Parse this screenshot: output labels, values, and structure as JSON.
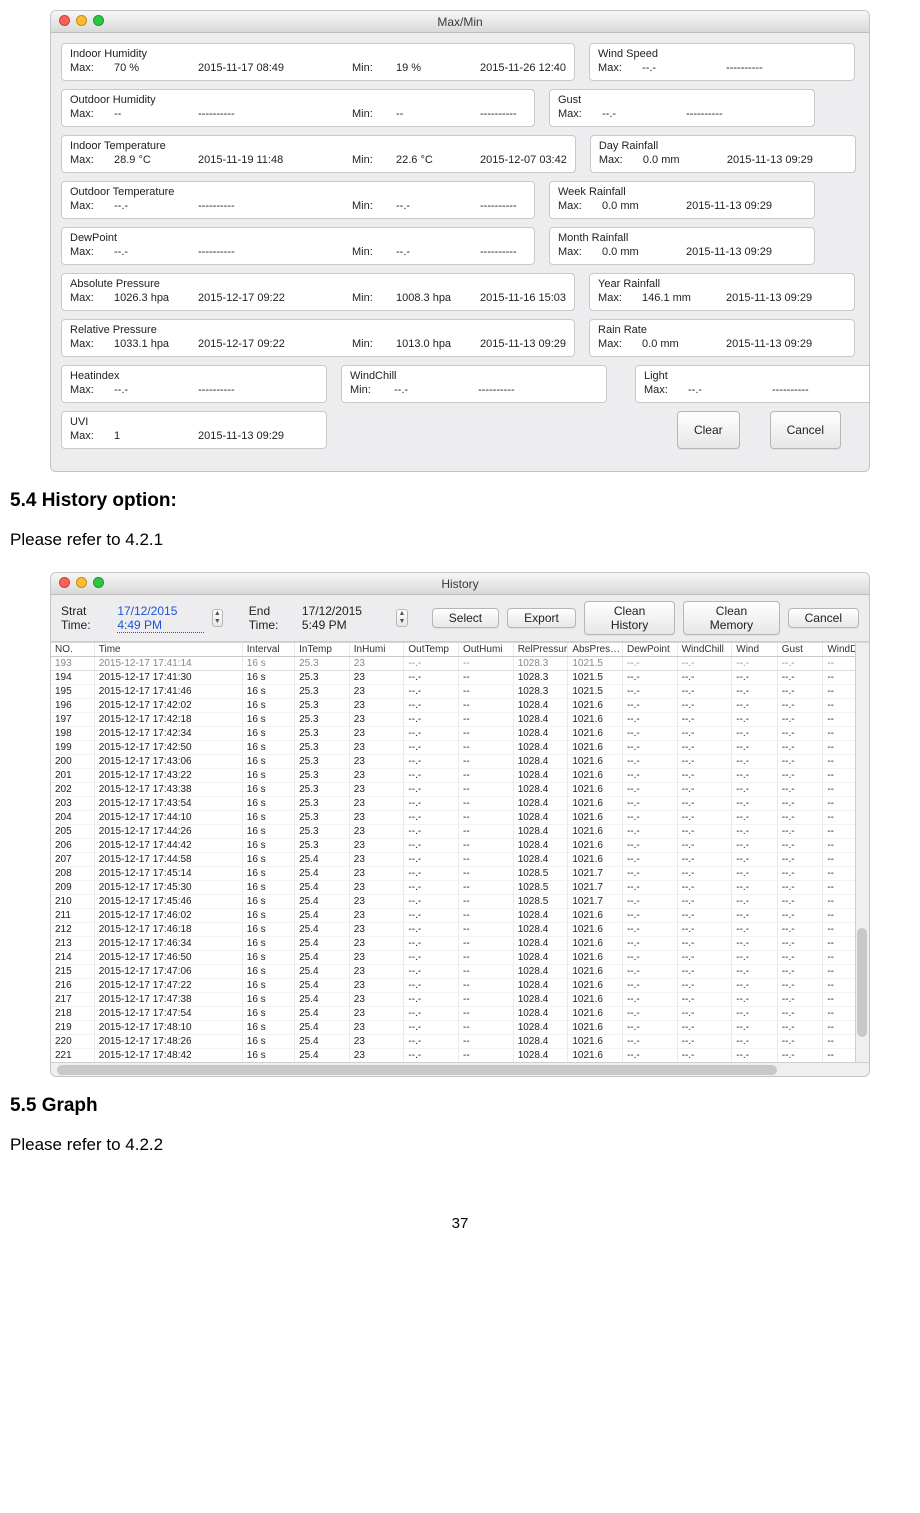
{
  "doc": {
    "h54": "5.4 History option:",
    "p54": "Please refer to 4.2.1",
    "h55": "5.5 Graph",
    "p55": "Please refer to 4.2.2",
    "page_number": "37"
  },
  "maxmin": {
    "title": "Max/Min",
    "clear_btn": "Clear",
    "cancel_btn": "Cancel",
    "rows": [
      {
        "left": {
          "title": "Indoor Humidity",
          "max_lab": "Max:",
          "max_val": "70 %",
          "max_ts": "2015-11-17 08:49",
          "min_lab": "Min:",
          "min_val": "19 %",
          "min_ts": "2015-11-26 12:40",
          "wide": true
        },
        "right": {
          "title": "Wind Speed",
          "max_lab": "Max:",
          "max_val": "--.-",
          "max_ts": "----------"
        }
      },
      {
        "left": {
          "title": "Outdoor Humidity",
          "max_lab": "Max:",
          "max_val": "--",
          "max_ts": "----------",
          "min_lab": "Min:",
          "min_val": "--",
          "min_ts": "----------",
          "wide": true
        },
        "right": {
          "title": "Gust",
          "max_lab": "Max:",
          "max_val": "--.-",
          "max_ts": "----------"
        }
      },
      {
        "left": {
          "title": "Indoor Temperature",
          "max_lab": "Max:",
          "max_val": "28.9 °C",
          "max_ts": "2015-11-19 11:48",
          "min_lab": "Min:",
          "min_val": "22.6 °C",
          "min_ts": "2015-12-07 03:42",
          "wide": true
        },
        "right": {
          "title": "Day Rainfall",
          "max_lab": "Max:",
          "max_val": "0.0 mm",
          "max_ts": "2015-11-13 09:29"
        }
      },
      {
        "left": {
          "title": "Outdoor Temperature",
          "max_lab": "Max:",
          "max_val": "--.-",
          "max_ts": "----------",
          "min_lab": "Min:",
          "min_val": "--.-",
          "min_ts": "----------",
          "wide": true
        },
        "right": {
          "title": "Week Rainfall",
          "max_lab": "Max:",
          "max_val": "0.0 mm",
          "max_ts": "2015-11-13 09:29"
        }
      },
      {
        "left": {
          "title": "DewPoint",
          "max_lab": "Max:",
          "max_val": "--.-",
          "max_ts": "----------",
          "min_lab": "Min:",
          "min_val": "--.-",
          "min_ts": "----------",
          "wide": true
        },
        "right": {
          "title": "Month Rainfall",
          "max_lab": "Max:",
          "max_val": "0.0 mm",
          "max_ts": "2015-11-13 09:29"
        }
      },
      {
        "left": {
          "title": "Absolute Pressure",
          "max_lab": "Max:",
          "max_val": "1026.3 hpa",
          "max_ts": "2015-12-17 09:22",
          "min_lab": "Min:",
          "min_val": "1008.3 hpa",
          "min_ts": "2015-11-16 15:03",
          "wide": true
        },
        "right": {
          "title": "Year Rainfall",
          "max_lab": "Max:",
          "max_val": "146.1 mm",
          "max_ts": "2015-11-13 09:29"
        }
      },
      {
        "left": {
          "title": "Relative Pressure",
          "max_lab": "Max:",
          "max_val": "1033.1 hpa",
          "max_ts": "2015-12-17 09:22",
          "min_lab": "Min:",
          "min_val": "1013.0 hpa",
          "min_ts": "2015-11-13 09:29",
          "wide": true
        },
        "right": {
          "title": "Rain Rate",
          "max_lab": "Max:",
          "max_val": "0.0 mm",
          "max_ts": "2015-11-13 09:29"
        }
      },
      {
        "left": {
          "title": "Heatindex",
          "max_lab": "Max:",
          "max_val": "--.-",
          "max_ts": "----------",
          "split": true,
          "mid": {
            "title": "WindChill",
            "lab": "Min:",
            "val": "--.-",
            "ts": "----------"
          }
        },
        "right": {
          "title": "Light",
          "max_lab": "Max:",
          "max_val": "--.-",
          "max_ts": "----------"
        }
      },
      {
        "left": {
          "title": "UVI",
          "max_lab": "Max:",
          "max_val": "1",
          "max_ts": "2015-11-13 09:29",
          "uvi": true
        },
        "right": null
      }
    ]
  },
  "history": {
    "title": "History",
    "start_lab": "Strat Time:",
    "start_val": "17/12/2015   4:49 PM",
    "end_lab": "End Time:",
    "end_val": "17/12/2015   5:49 PM",
    "btn_select": "Select",
    "btn_export": "Export",
    "btn_clean_history": "Clean History",
    "btn_clean_memory": "Clean Memory",
    "btn_cancel": "Cancel",
    "columns": [
      "NO.",
      "Time",
      "Interval",
      "InTemp",
      "InHumi",
      "OutTemp",
      "OutHumi",
      "RelPressure",
      "AbsPres…",
      "DewPoint",
      "WindChill",
      "Wind",
      "Gust",
      "WindD"
    ],
    "col_classes": [
      "col-no",
      "col-time",
      "col-int",
      "col-v",
      "col-v",
      "col-v",
      "col-v",
      "col-v",
      "col-v",
      "col-v",
      "col-v",
      "col-vxs",
      "col-vxs",
      "col-vxs"
    ],
    "cut_row": [
      "193",
      "2015-12-17 17:41:14",
      "16 s",
      "25.3",
      "23",
      "--.-",
      "--",
      "1028.3",
      "1021.5",
      "--.-",
      "--.-",
      "--.-",
      "--.-",
      "--"
    ],
    "rows": [
      [
        "194",
        "2015-12-17 17:41:30",
        "16 s",
        "25.3",
        "23",
        "--.-",
        "--",
        "1028.3",
        "1021.5",
        "--.-",
        "--.-",
        "--.-",
        "--.-",
        "--"
      ],
      [
        "195",
        "2015-12-17 17:41:46",
        "16 s",
        "25.3",
        "23",
        "--.-",
        "--",
        "1028.3",
        "1021.5",
        "--.-",
        "--.-",
        "--.-",
        "--.-",
        "--"
      ],
      [
        "196",
        "2015-12-17 17:42:02",
        "16 s",
        "25.3",
        "23",
        "--.-",
        "--",
        "1028.4",
        "1021.6",
        "--.-",
        "--.-",
        "--.-",
        "--.-",
        "--"
      ],
      [
        "197",
        "2015-12-17 17:42:18",
        "16 s",
        "25.3",
        "23",
        "--.-",
        "--",
        "1028.4",
        "1021.6",
        "--.-",
        "--.-",
        "--.-",
        "--.-",
        "--"
      ],
      [
        "198",
        "2015-12-17 17:42:34",
        "16 s",
        "25.3",
        "23",
        "--.-",
        "--",
        "1028.4",
        "1021.6",
        "--.-",
        "--.-",
        "--.-",
        "--.-",
        "--"
      ],
      [
        "199",
        "2015-12-17 17:42:50",
        "16 s",
        "25.3",
        "23",
        "--.-",
        "--",
        "1028.4",
        "1021.6",
        "--.-",
        "--.-",
        "--.-",
        "--.-",
        "--"
      ],
      [
        "200",
        "2015-12-17 17:43:06",
        "16 s",
        "25.3",
        "23",
        "--.-",
        "--",
        "1028.4",
        "1021.6",
        "--.-",
        "--.-",
        "--.-",
        "--.-",
        "--"
      ],
      [
        "201",
        "2015-12-17 17:43:22",
        "16 s",
        "25.3",
        "23",
        "--.-",
        "--",
        "1028.4",
        "1021.6",
        "--.-",
        "--.-",
        "--.-",
        "--.-",
        "--"
      ],
      [
        "202",
        "2015-12-17 17:43:38",
        "16 s",
        "25.3",
        "23",
        "--.-",
        "--",
        "1028.4",
        "1021.6",
        "--.-",
        "--.-",
        "--.-",
        "--.-",
        "--"
      ],
      [
        "203",
        "2015-12-17 17:43:54",
        "16 s",
        "25.3",
        "23",
        "--.-",
        "--",
        "1028.4",
        "1021.6",
        "--.-",
        "--.-",
        "--.-",
        "--.-",
        "--"
      ],
      [
        "204",
        "2015-12-17 17:44:10",
        "16 s",
        "25.3",
        "23",
        "--.-",
        "--",
        "1028.4",
        "1021.6",
        "--.-",
        "--.-",
        "--.-",
        "--.-",
        "--"
      ],
      [
        "205",
        "2015-12-17 17:44:26",
        "16 s",
        "25.3",
        "23",
        "--.-",
        "--",
        "1028.4",
        "1021.6",
        "--.-",
        "--.-",
        "--.-",
        "--.-",
        "--"
      ],
      [
        "206",
        "2015-12-17 17:44:42",
        "16 s",
        "25.3",
        "23",
        "--.-",
        "--",
        "1028.4",
        "1021.6",
        "--.-",
        "--.-",
        "--.-",
        "--.-",
        "--"
      ],
      [
        "207",
        "2015-12-17 17:44:58",
        "16 s",
        "25.4",
        "23",
        "--.-",
        "--",
        "1028.4",
        "1021.6",
        "--.-",
        "--.-",
        "--.-",
        "--.-",
        "--"
      ],
      [
        "208",
        "2015-12-17 17:45:14",
        "16 s",
        "25.4",
        "23",
        "--.-",
        "--",
        "1028.5",
        "1021.7",
        "--.-",
        "--.-",
        "--.-",
        "--.-",
        "--"
      ],
      [
        "209",
        "2015-12-17 17:45:30",
        "16 s",
        "25.4",
        "23",
        "--.-",
        "--",
        "1028.5",
        "1021.7",
        "--.-",
        "--.-",
        "--.-",
        "--.-",
        "--"
      ],
      [
        "210",
        "2015-12-17 17:45:46",
        "16 s",
        "25.4",
        "23",
        "--.-",
        "--",
        "1028.5",
        "1021.7",
        "--.-",
        "--.-",
        "--.-",
        "--.-",
        "--"
      ],
      [
        "211",
        "2015-12-17 17:46:02",
        "16 s",
        "25.4",
        "23",
        "--.-",
        "--",
        "1028.4",
        "1021.6",
        "--.-",
        "--.-",
        "--.-",
        "--.-",
        "--"
      ],
      [
        "212",
        "2015-12-17 17:46:18",
        "16 s",
        "25.4",
        "23",
        "--.-",
        "--",
        "1028.4",
        "1021.6",
        "--.-",
        "--.-",
        "--.-",
        "--.-",
        "--"
      ],
      [
        "213",
        "2015-12-17 17:46:34",
        "16 s",
        "25.4",
        "23",
        "--.-",
        "--",
        "1028.4",
        "1021.6",
        "--.-",
        "--.-",
        "--.-",
        "--.-",
        "--"
      ],
      [
        "214",
        "2015-12-17 17:46:50",
        "16 s",
        "25.4",
        "23",
        "--.-",
        "--",
        "1028.4",
        "1021.6",
        "--.-",
        "--.-",
        "--.-",
        "--.-",
        "--"
      ],
      [
        "215",
        "2015-12-17 17:47:06",
        "16 s",
        "25.4",
        "23",
        "--.-",
        "--",
        "1028.4",
        "1021.6",
        "--.-",
        "--.-",
        "--.-",
        "--.-",
        "--"
      ],
      [
        "216",
        "2015-12-17 17:47:22",
        "16 s",
        "25.4",
        "23",
        "--.-",
        "--",
        "1028.4",
        "1021.6",
        "--.-",
        "--.-",
        "--.-",
        "--.-",
        "--"
      ],
      [
        "217",
        "2015-12-17 17:47:38",
        "16 s",
        "25.4",
        "23",
        "--.-",
        "--",
        "1028.4",
        "1021.6",
        "--.-",
        "--.-",
        "--.-",
        "--.-",
        "--"
      ],
      [
        "218",
        "2015-12-17 17:47:54",
        "16 s",
        "25.4",
        "23",
        "--.-",
        "--",
        "1028.4",
        "1021.6",
        "--.-",
        "--.-",
        "--.-",
        "--.-",
        "--"
      ],
      [
        "219",
        "2015-12-17 17:48:10",
        "16 s",
        "25.4",
        "23",
        "--.-",
        "--",
        "1028.4",
        "1021.6",
        "--.-",
        "--.-",
        "--.-",
        "--.-",
        "--"
      ],
      [
        "220",
        "2015-12-17 17:48:26",
        "16 s",
        "25.4",
        "23",
        "--.-",
        "--",
        "1028.4",
        "1021.6",
        "--.-",
        "--.-",
        "--.-",
        "--.-",
        "--"
      ],
      [
        "221",
        "2015-12-17 17:48:42",
        "16 s",
        "25.4",
        "23",
        "--.-",
        "--",
        "1028.4",
        "1021.6",
        "--.-",
        "--.-",
        "--.-",
        "--.-",
        "--"
      ]
    ]
  }
}
